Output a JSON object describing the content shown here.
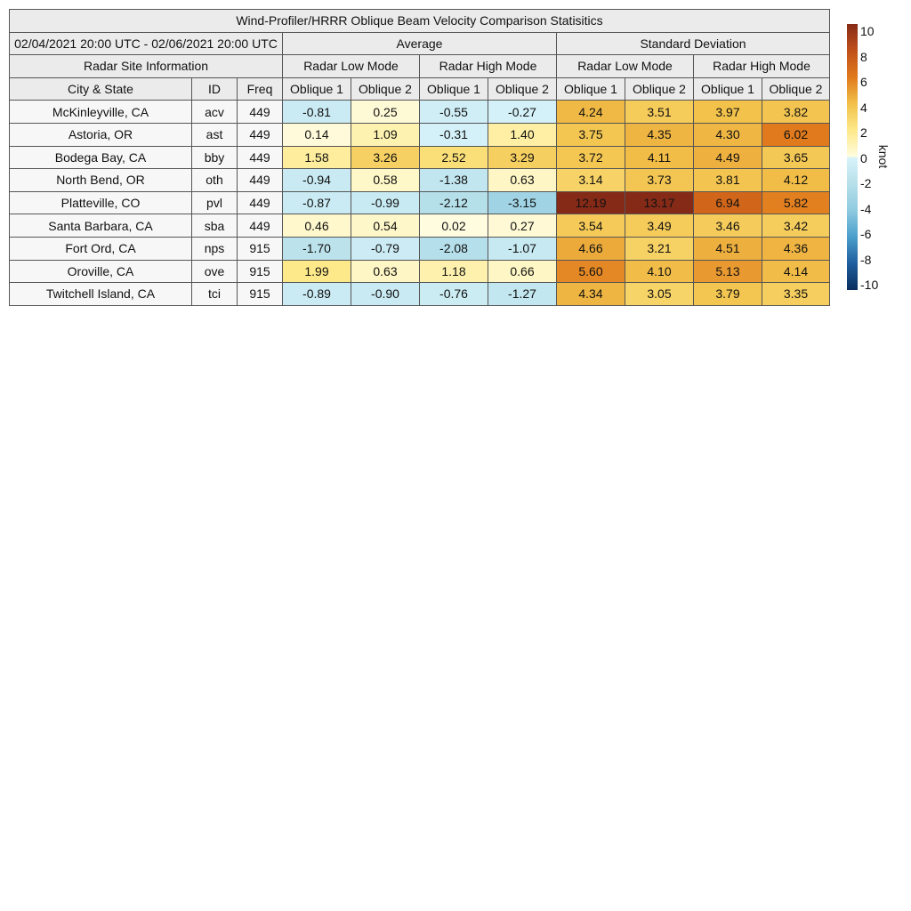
{
  "title": "Wind-Profiler/HRRR Oblique Beam Velocity Comparison Statisitics",
  "date_range": "02/04/2021 20:00 UTC - 02/06/2021 20:00 UTC",
  "groups": {
    "average": "Average",
    "std": "Standard Deviation"
  },
  "site_info": "Radar Site Information",
  "modes": {
    "low": "Radar Low Mode",
    "high": "Radar High Mode"
  },
  "columns": {
    "city": "City & State",
    "id": "ID",
    "freq": "Freq",
    "ob1": "Oblique 1",
    "ob2": "Oblique 2"
  },
  "chart_data": {
    "type": "heatmap",
    "title": "Wind-Profiler/HRRR Oblique Beam Velocity Comparison Statisitics",
    "column_order": [
      "Average Low Oblique 1",
      "Average Low Oblique 2",
      "Average High Oblique 1",
      "Average High Oblique 2",
      "Std Low Oblique 1",
      "Std Low Oblique 2",
      "Std High Oblique 1",
      "Std High Oblique 2"
    ],
    "rows": [
      {
        "city": "McKinleyville, CA",
        "id": "acv",
        "freq": "449",
        "values": [
          "-0.81",
          "0.25",
          "-0.55",
          "-0.27",
          "4.24",
          "3.51",
          "3.97",
          "3.82"
        ]
      },
      {
        "city": "Astoria, OR",
        "id": "ast",
        "freq": "449",
        "values": [
          "0.14",
          "1.09",
          "-0.31",
          "1.40",
          "3.75",
          "4.35",
          "4.30",
          "6.02"
        ]
      },
      {
        "city": "Bodega Bay, CA",
        "id": "bby",
        "freq": "449",
        "values": [
          "1.58",
          "3.26",
          "2.52",
          "3.29",
          "3.72",
          "4.11",
          "4.49",
          "3.65"
        ]
      },
      {
        "city": "North Bend, OR",
        "id": "oth",
        "freq": "449",
        "values": [
          "-0.94",
          "0.58",
          "-1.38",
          "0.63",
          "3.14",
          "3.73",
          "3.81",
          "4.12"
        ]
      },
      {
        "city": "Platteville, CO",
        "id": "pvl",
        "freq": "449",
        "values": [
          "-0.87",
          "-0.99",
          "-2.12",
          "-3.15",
          "12.19",
          "13.17",
          "6.94",
          "5.82"
        ]
      },
      {
        "city": "Santa Barbara, CA",
        "id": "sba",
        "freq": "449",
        "values": [
          "0.46",
          "0.54",
          "0.02",
          "0.27",
          "3.54",
          "3.49",
          "3.46",
          "3.42"
        ]
      },
      {
        "city": "Fort Ord, CA",
        "id": "nps",
        "freq": "915",
        "values": [
          "-1.70",
          "-0.79",
          "-2.08",
          "-1.07",
          "4.66",
          "3.21",
          "4.51",
          "4.36"
        ]
      },
      {
        "city": "Oroville, CA",
        "id": "ove",
        "freq": "915",
        "values": [
          "1.99",
          "0.63",
          "1.18",
          "0.66",
          "5.60",
          "4.10",
          "5.13",
          "4.14"
        ]
      },
      {
        "city": "Twitchell Island, CA",
        "id": "tci",
        "freq": "915",
        "values": [
          "-0.89",
          "-0.90",
          "-0.76",
          "-1.27",
          "4.34",
          "3.05",
          "3.79",
          "3.35"
        ]
      }
    ],
    "colorbar": {
      "label": "knot",
      "range": [
        -10,
        10
      ],
      "ticks": [
        "10",
        "8",
        "6",
        "4",
        "2",
        "0",
        "-2",
        "-4",
        "-6",
        "-8",
        "-10"
      ],
      "colors": {
        "-10": "#0a2e5e",
        "-8": "#1f5e9e",
        "-6": "#4a9fcc",
        "-4": "#8fcbe0",
        "-2": "#b7e0ea",
        "0": "#d9f3fa",
        "0.01": "#fffce0",
        "2": "#fde98a",
        "4": "#f2c14a",
        "6": "#e07a1c",
        "8": "#c0501a",
        "10": "#862a18"
      }
    }
  }
}
